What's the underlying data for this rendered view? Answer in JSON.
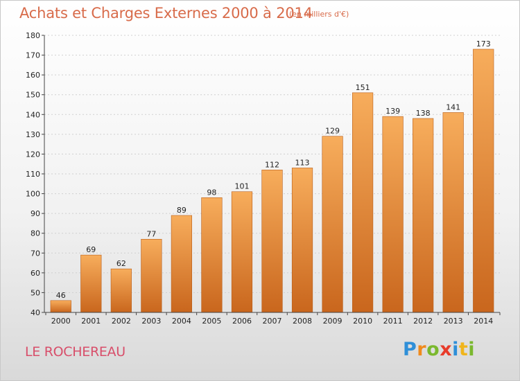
{
  "chart_data": {
    "type": "bar",
    "title": "Achats et Charges Externes 2000 à 2014",
    "subtitle": "(en milliers d'€)",
    "categories": [
      "2000",
      "2001",
      "2002",
      "2003",
      "2004",
      "2005",
      "2006",
      "2007",
      "2008",
      "2009",
      "2010",
      "2011",
      "2012",
      "2013",
      "2014"
    ],
    "values": [
      46,
      69,
      62,
      77,
      89,
      98,
      101,
      112,
      113,
      129,
      151,
      139,
      138,
      141,
      173
    ],
    "ylim": [
      40,
      180
    ],
    "yticks": [
      40,
      50,
      60,
      70,
      80,
      90,
      100,
      110,
      120,
      130,
      140,
      150,
      160,
      170,
      180
    ],
    "grid": true,
    "bar_color": "#f0923a",
    "bar_color_light": "#f7ad5c",
    "bar_color_dark": "#c9661d"
  },
  "footer": {
    "commune": "LE ROCHEREAU",
    "logo_letters": [
      {
        "ch": "P",
        "color": "#2f8fd8"
      },
      {
        "ch": "r",
        "color": "#f08a1c"
      },
      {
        "ch": "o",
        "color": "#7ab82e"
      },
      {
        "ch": "x",
        "color": "#e83b2a"
      },
      {
        "ch": "i",
        "color": "#2f8fd8"
      },
      {
        "ch": "t",
        "color": "#f0b51c"
      },
      {
        "ch": "i",
        "color": "#7ab82e"
      }
    ]
  }
}
